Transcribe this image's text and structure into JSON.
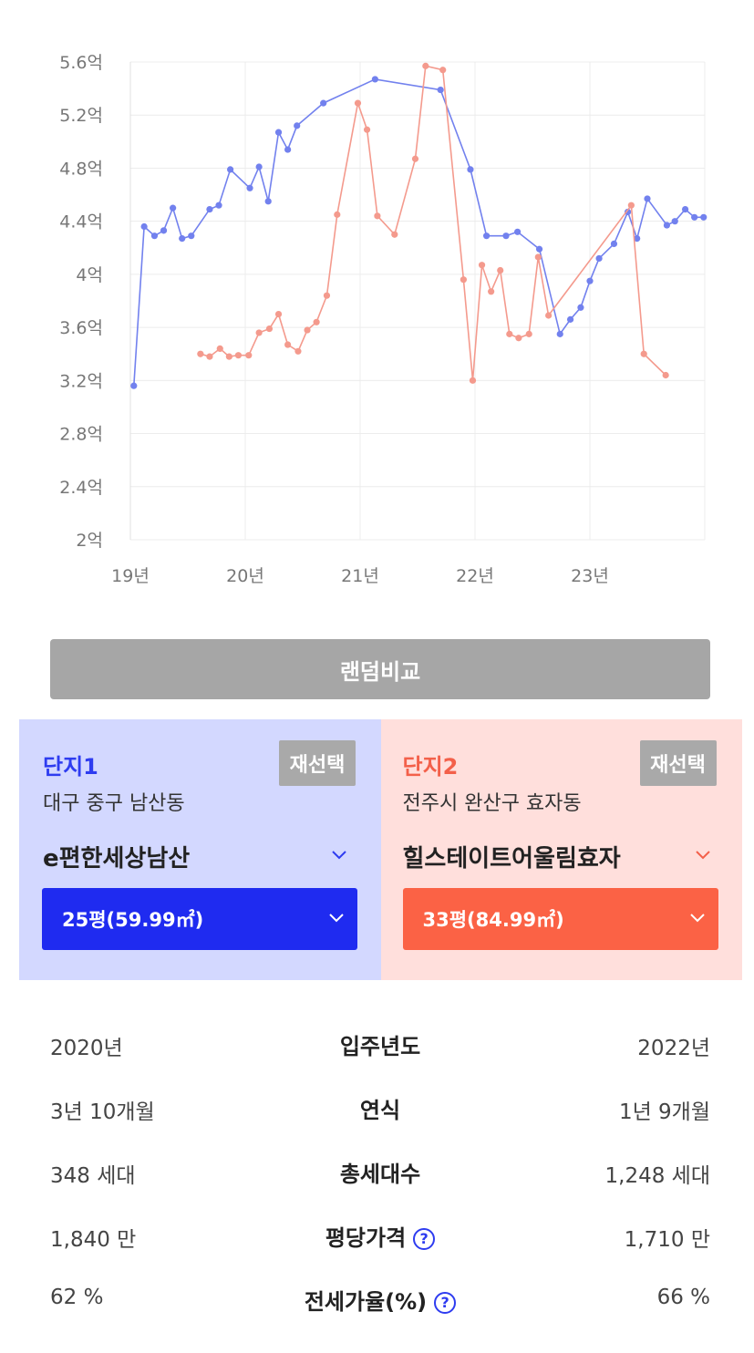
{
  "chart_data": {
    "type": "line",
    "y_ticks": [
      "5.6억",
      "5.2억",
      "4.8억",
      "4.4억",
      "4억",
      "3.6억",
      "3.2억",
      "2.8억",
      "2.4억",
      "2억"
    ],
    "x_ticks": [
      "19년",
      "20년",
      "21년",
      "22년",
      "23년"
    ],
    "ylim": [
      2.0,
      5.6
    ],
    "xlim": [
      2019.0,
      2024.0
    ],
    "grid": true,
    "series": [
      {
        "color": "#7281ee",
        "points": [
          [
            2019.03,
            3.16
          ],
          [
            2019.12,
            4.36
          ],
          [
            2019.21,
            4.29
          ],
          [
            2019.29,
            4.33
          ],
          [
            2019.37,
            4.5
          ],
          [
            2019.45,
            4.27
          ],
          [
            2019.53,
            4.29
          ],
          [
            2019.69,
            4.49
          ],
          [
            2019.77,
            4.52
          ],
          [
            2019.87,
            4.79
          ],
          [
            2020.04,
            4.65
          ],
          [
            2020.12,
            4.81
          ],
          [
            2020.2,
            4.55
          ],
          [
            2020.29,
            5.07
          ],
          [
            2020.37,
            4.94
          ],
          [
            2020.45,
            5.12
          ],
          [
            2020.68,
            5.29
          ],
          [
            2021.13,
            5.47
          ],
          [
            2021.7,
            5.39
          ],
          [
            2021.96,
            4.79
          ],
          [
            2022.1,
            4.29
          ],
          [
            2022.27,
            4.29
          ],
          [
            2022.37,
            4.32
          ],
          [
            2022.56,
            4.19
          ],
          [
            2022.74,
            3.55
          ],
          [
            2022.83,
            3.66
          ],
          [
            2022.92,
            3.75
          ],
          [
            2023.0,
            3.95
          ],
          [
            2023.08,
            4.12
          ],
          [
            2023.21,
            4.23
          ],
          [
            2023.33,
            4.47
          ],
          [
            2023.41,
            4.27
          ],
          [
            2023.5,
            4.57
          ],
          [
            2023.67,
            4.37
          ],
          [
            2023.74,
            4.4
          ],
          [
            2023.83,
            4.49
          ],
          [
            2023.91,
            4.43
          ],
          [
            2023.99,
            4.43
          ]
        ]
      },
      {
        "color": "#f49a8d",
        "points": [
          [
            2019.61,
            3.4
          ],
          [
            2019.69,
            3.38
          ],
          [
            2019.78,
            3.44
          ],
          [
            2019.86,
            3.38
          ],
          [
            2019.94,
            3.39
          ],
          [
            2020.03,
            3.39
          ],
          [
            2020.12,
            3.56
          ],
          [
            2020.21,
            3.59
          ],
          [
            2020.29,
            3.7
          ],
          [
            2020.37,
            3.47
          ],
          [
            2020.46,
            3.42
          ],
          [
            2020.54,
            3.58
          ],
          [
            2020.62,
            3.64
          ],
          [
            2020.71,
            3.84
          ],
          [
            2020.8,
            4.45
          ],
          [
            2020.98,
            5.29
          ],
          [
            2021.06,
            5.09
          ],
          [
            2021.15,
            4.44
          ],
          [
            2021.3,
            4.3
          ],
          [
            2021.48,
            4.87
          ],
          [
            2021.57,
            5.57
          ],
          [
            2021.72,
            5.54
          ],
          [
            2021.9,
            3.96
          ],
          [
            2021.98,
            3.2
          ],
          [
            2022.06,
            4.07
          ],
          [
            2022.14,
            3.87
          ],
          [
            2022.22,
            4.03
          ],
          [
            2022.3,
            3.55
          ],
          [
            2022.38,
            3.52
          ],
          [
            2022.47,
            3.55
          ],
          [
            2022.55,
            4.13
          ],
          [
            2022.64,
            3.69
          ],
          [
            2023.36,
            4.52
          ],
          [
            2023.47,
            3.4
          ],
          [
            2023.66,
            3.24
          ]
        ]
      }
    ]
  },
  "compare_button": "랜덤비교",
  "complex1": {
    "label": "단지1",
    "reselect": "재선택",
    "region": "대구 중구 남산동",
    "name": "e편한세상남산",
    "size": "25평(59.99㎡)"
  },
  "complex2": {
    "label": "단지2",
    "reselect": "재선택",
    "region": "전주시 완산구 효자동",
    "name": "힐스테이트어울림효자",
    "size": "33평(84.99㎡)"
  },
  "info_rows": [
    {
      "left": "2020년",
      "center": "입주년도",
      "right": "2022년",
      "help": false
    },
    {
      "left": "3년 10개월",
      "center": "연식",
      "right": "1년 9개월",
      "help": false
    },
    {
      "left": "348 세대",
      "center": "총세대수",
      "right": "1,248 세대",
      "help": false
    },
    {
      "left": "1,840 만",
      "center": "평당가격",
      "right": "1,710 만",
      "help": true
    },
    {
      "left": "62 %",
      "center": "전세가율(%)",
      "right": "66 %",
      "help": true
    }
  ],
  "help_glyph": "?"
}
